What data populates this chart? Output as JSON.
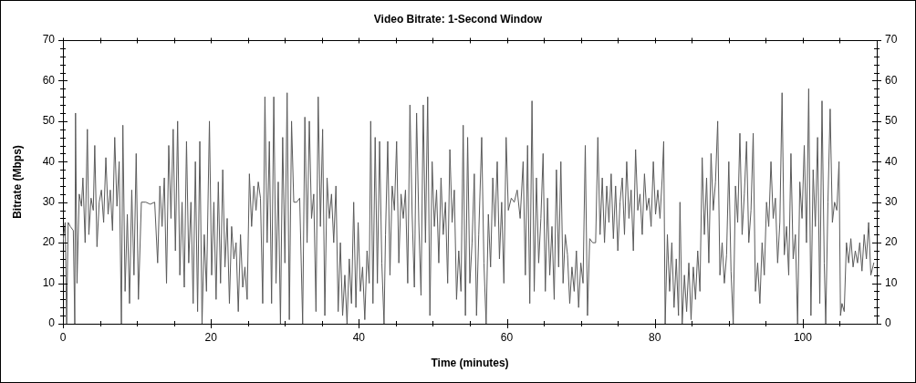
{
  "chart_data": {
    "type": "line",
    "title": "Video Bitrate: 1-Second Window",
    "xlabel": "Time (minutes)",
    "ylabel": "Bitrate (Mbps)",
    "xlim": [
      0,
      110
    ],
    "xticks": [
      0,
      {
        "value": 5,
        "label": null
      },
      {
        "value": 10,
        "label": null
      },
      {
        "value": 15,
        "label": null
      },
      20,
      {
        "value": 25,
        "label": null
      },
      {
        "value": 30,
        "label": null
      },
      {
        "value": 35,
        "label": null
      },
      40,
      {
        "value": 45,
        "label": null
      },
      {
        "value": 50,
        "label": null
      },
      {
        "value": 55,
        "label": null
      },
      60,
      {
        "value": 65,
        "label": null
      },
      {
        "value": 70,
        "label": null
      },
      {
        "value": 75,
        "label": null
      },
      80,
      {
        "value": 85,
        "label": null
      },
      {
        "value": 90,
        "label": null
      },
      {
        "value": 95,
        "label": null
      },
      100,
      {
        "value": 105,
        "label": null
      }
    ],
    "ylim": [
      0,
      70
    ],
    "yticks": [
      0,
      {
        "value": 2,
        "label": null
      },
      {
        "value": 4,
        "label": null
      },
      {
        "value": 6,
        "label": null
      },
      {
        "value": 8,
        "label": null
      },
      10,
      {
        "value": 12,
        "label": null
      },
      {
        "value": 14,
        "label": null
      },
      {
        "value": 16,
        "label": null
      },
      {
        "value": 18,
        "label": null
      },
      20,
      {
        "value": 22,
        "label": null
      },
      {
        "value": 24,
        "label": null
      },
      {
        "value": 26,
        "label": null
      },
      {
        "value": 28,
        "label": null
      },
      30,
      {
        "value": 32,
        "label": null
      },
      {
        "value": 34,
        "label": null
      },
      {
        "value": 36,
        "label": null
      },
      {
        "value": 38,
        "label": null
      },
      40,
      {
        "value": 42,
        "label": null
      },
      {
        "value": 44,
        "label": null
      },
      {
        "value": 46,
        "label": null
      },
      {
        "value": 48,
        "label": null
      },
      50,
      {
        "value": 52,
        "label": null
      },
      {
        "value": 54,
        "label": null
      },
      {
        "value": 56,
        "label": null
      },
      {
        "value": 58,
        "label": null
      },
      60,
      {
        "value": 62,
        "label": null
      },
      {
        "value": 64,
        "label": null
      },
      {
        "value": 66,
        "label": null
      },
      {
        "value": 68,
        "label": null
      },
      70
    ],
    "y2lim": [
      0,
      70
    ],
    "y2ticks": [
      0,
      {
        "value": 2,
        "label": null
      },
      {
        "value": 4,
        "label": null
      },
      {
        "value": 6,
        "label": null
      },
      {
        "value": 8,
        "label": null
      },
      10,
      {
        "value": 12,
        "label": null
      },
      {
        "value": 14,
        "label": null
      },
      {
        "value": 16,
        "label": null
      },
      {
        "value": 18,
        "label": null
      },
      20,
      {
        "value": 22,
        "label": null
      },
      {
        "value": 24,
        "label": null
      },
      {
        "value": 26,
        "label": null
      },
      {
        "value": 28,
        "label": null
      },
      30,
      {
        "value": 32,
        "label": null
      },
      {
        "value": 34,
        "label": null
      },
      {
        "value": 36,
        "label": null
      },
      {
        "value": 38,
        "label": null
      },
      40,
      {
        "value": 42,
        "label": null
      },
      {
        "value": 44,
        "label": null
      },
      {
        "value": 46,
        "label": null
      },
      {
        "value": 48,
        "label": null
      },
      50,
      {
        "value": 52,
        "label": null
      },
      {
        "value": 54,
        "label": null
      },
      {
        "value": 56,
        "label": null
      },
      {
        "value": 58,
        "label": null
      },
      60,
      {
        "value": 62,
        "label": null
      },
      {
        "value": 64,
        "label": null
      },
      {
        "value": 66,
        "label": null
      },
      {
        "value": 68,
        "label": null
      },
      70
    ],
    "marker": "none",
    "line_style": "solid",
    "x": [
      0,
      0.3,
      0.5,
      0.7,
      1.0,
      1.4,
      1.6,
      1.7,
      1.9,
      2.2,
      2.5,
      2.7,
      3.0,
      3.3,
      3.5,
      3.8,
      4.1,
      4.3,
      4.6,
      4.9,
      5.2,
      5.5,
      5.8,
      6.1,
      6.4,
      6.7,
      7.0,
      7.3,
      7.6,
      7.9,
      8.1,
      8.4,
      8.7,
      9.0,
      9.3,
      9.6,
      9.9,
      10.2,
      10.6,
      11.2,
      11.8,
      12.4,
      12.8,
      13.1,
      13.4,
      13.7,
      14.0,
      14.3,
      14.6,
      14.9,
      15.2,
      15.5,
      15.8,
      16.1,
      16.4,
      16.7,
      17.0,
      17.3,
      17.6,
      17.9,
      18.2,
      18.5,
      18.8,
      19.1,
      19.4,
      19.8,
      20.1,
      20.4,
      20.7,
      21.0,
      21.3,
      21.6,
      21.9,
      22.2,
      22.5,
      22.8,
      23.1,
      23.4,
      23.7,
      24.0,
      24.3,
      24.6,
      24.9,
      25.2,
      25.5,
      25.8,
      26.1,
      26.4,
      26.7,
      27.0,
      27.3,
      27.6,
      27.9,
      28.2,
      28.5,
      28.8,
      29.1,
      29.4,
      29.7,
      30.0,
      30.3,
      30.6,
      30.9,
      31.2,
      31.6,
      32.0,
      32.4,
      32.7,
      33.0,
      33.3,
      33.6,
      33.9,
      34.2,
      34.5,
      34.8,
      35.1,
      35.4,
      35.7,
      36.0,
      36.3,
      36.6,
      36.9,
      37.2,
      37.5,
      37.8,
      38.1,
      38.4,
      38.7,
      39.0,
      39.3,
      39.6,
      39.9,
      40.2,
      40.5,
      40.8,
      41.1,
      41.4,
      41.6,
      41.9,
      42.2,
      42.5,
      42.8,
      43.1,
      43.4,
      43.6,
      43.9,
      44.2,
      44.5,
      44.8,
      45.1,
      45.4,
      45.7,
      46.0,
      46.3,
      46.6,
      46.9,
      47.2,
      47.5,
      47.8,
      48.1,
      48.4,
      48.7,
      49.0,
      49.3,
      49.6,
      49.9,
      50.2,
      50.5,
      50.8,
      51.1,
      51.4,
      51.7,
      52.0,
      52.3,
      52.6,
      52.9,
      53.2,
      53.5,
      53.8,
      54.1,
      54.4,
      54.7,
      55.0,
      55.3,
      55.6,
      55.9,
      56.2,
      56.6,
      56.9,
      57.2,
      57.5,
      57.8,
      58.1,
      58.4,
      58.7,
      59.0,
      59.3,
      59.6,
      59.9,
      60.2,
      60.6,
      61.0,
      61.4,
      61.8,
      62.2,
      62.5,
      62.8,
      63.1,
      63.4,
      63.7,
      64.0,
      64.3,
      64.6,
      64.9,
      65.2,
      65.5,
      65.8,
      66.1,
      66.4,
      66.7,
      67.0,
      67.3,
      67.6,
      67.9,
      68.2,
      68.5,
      68.8,
      69.1,
      69.4,
      69.7,
      70.0,
      70.3,
      70.6,
      70.9,
      71.2,
      71.6,
      72.0,
      72.3,
      72.6,
      72.9,
      73.2,
      73.5,
      73.8,
      74.1,
      74.4,
      74.7,
      75.0,
      75.3,
      75.6,
      75.9,
      76.2,
      76.5,
      76.8,
      77.1,
      77.4,
      77.7,
      78.0,
      78.3,
      78.6,
      78.9,
      79.2,
      79.5,
      79.8,
      80.1,
      80.4,
      80.7,
      81.0,
      81.2,
      81.4,
      81.7,
      82.0,
      82.3,
      82.6,
      82.9,
      83.2,
      83.4,
      83.7,
      84.0,
      84.3,
      84.6,
      84.9,
      85.2,
      85.5,
      85.8,
      86.1,
      86.4,
      86.7,
      87.0,
      87.3,
      87.6,
      87.9,
      88.2,
      88.5,
      88.8,
      89.1,
      89.4,
      89.7,
      90.0,
      90.3,
      90.6,
      90.9,
      91.2,
      91.5,
      91.8,
      92.1,
      92.4,
      92.7,
      93.0,
      93.3,
      93.6,
      93.9,
      94.2,
      94.5,
      94.8,
      95.1,
      95.4,
      95.7,
      96.0,
      96.3,
      96.6,
      96.9,
      97.2,
      97.5,
      97.8,
      98.1,
      98.4,
      98.7,
      99.0,
      99.3,
      99.6,
      99.9,
      100.2,
      100.5,
      100.8,
      101.1,
      101.4,
      101.7,
      102.0,
      102.3,
      102.6,
      102.9,
      103.1,
      103.4,
      103.7,
      104.0,
      104.3,
      104.6,
      104.9,
      105.1,
      105.3,
      105.6,
      105.9,
      106.2,
      106.5,
      106.8,
      107.1,
      107.4,
      107.7,
      108.0,
      108.3,
      108.6,
      108.9,
      109.2,
      109.6
    ],
    "series": [
      {
        "color": "#5a5a5a",
        "values": [
          20,
          25,
          0,
          25,
          24,
          23,
          0,
          52,
          10,
          32,
          29,
          36,
          20,
          48,
          22,
          31,
          28,
          44,
          19,
          30,
          33,
          25,
          41,
          27,
          33,
          23,
          46,
          29,
          40,
          0,
          49,
          8,
          27,
          5,
          33,
          12,
          42,
          6,
          30,
          30,
          29.5,
          30,
          15,
          34,
          24,
          36,
          10,
          44,
          26,
          48,
          18,
          50,
          12,
          30,
          9,
          45,
          15,
          30,
          5,
          40,
          3,
          45,
          0,
          22,
          8,
          50,
          12,
          30,
          6,
          35,
          10,
          38,
          14,
          26,
          5,
          24,
          16,
          20,
          3,
          22,
          9,
          14,
          6,
          37,
          24,
          34,
          28,
          35,
          31,
          5,
          56,
          20,
          45,
          5,
          56,
          10,
          35,
          0,
          46,
          15,
          57,
          1,
          50,
          30,
          30,
          31,
          0,
          51,
          20,
          50,
          26,
          32,
          3,
          56,
          24,
          48,
          2,
          36,
          26,
          32,
          20,
          34,
          3,
          20,
          2,
          12,
          0,
          16,
          5,
          30,
          4,
          25,
          8,
          14,
          1,
          18,
          10,
          50,
          5,
          46,
          10,
          45,
          15,
          0,
          22,
          45,
          12,
          34,
          28,
          45,
          15,
          32,
          26,
          33,
          10,
          54,
          27,
          9,
          52,
          25,
          7,
          54,
          20,
          56,
          2,
          40,
          24,
          33,
          15,
          36,
          22,
          30,
          10,
          43,
          25,
          33,
          6,
          18,
          8,
          49,
          2,
          46,
          10,
          20,
          37,
          2,
          22,
          46,
          15,
          0,
          27,
          14,
          36,
          24,
          40,
          16,
          30,
          10,
          46,
          28,
          31,
          30,
          33,
          26,
          40,
          12,
          44,
          5,
          55,
          8,
          36,
          15,
          26,
          42,
          8,
          31,
          12,
          24,
          6,
          38,
          14,
          40,
          10,
          22,
          17,
          5,
          14,
          8,
          18,
          4,
          15,
          10,
          44,
          2,
          21,
          20,
          20,
          46,
          22,
          36,
          20,
          34,
          25,
          37,
          21,
          34,
          18,
          30,
          36,
          22,
          40,
          26,
          33,
          18,
          43,
          28,
          32,
          22,
          37,
          28,
          31,
          24,
          40,
          27,
          33,
          26,
          36,
          45,
          0,
          22,
          8,
          20,
          4,
          16,
          2,
          30,
          0,
          12,
          3,
          15,
          1,
          14,
          6,
          18,
          8,
          41,
          22,
          36,
          15,
          42,
          28,
          35,
          50,
          12,
          20,
          10,
          17,
          40,
          13,
          0,
          34,
          25,
          47,
          22,
          32,
          45,
          20,
          28,
          47,
          8,
          15,
          5,
          20,
          12,
          30,
          24,
          40,
          26,
          31,
          15,
          25,
          57,
          17,
          24,
          12,
          42,
          16,
          22,
          0,
          35,
          26,
          44,
          20,
          58,
          2,
          38,
          24,
          46,
          5,
          55,
          15,
          0,
          30,
          53,
          25,
          30,
          28,
          40,
          2,
          5,
          3,
          20,
          15,
          21,
          14,
          18,
          15,
          20,
          13,
          22,
          16,
          25,
          12,
          15
        ]
      }
    ]
  }
}
